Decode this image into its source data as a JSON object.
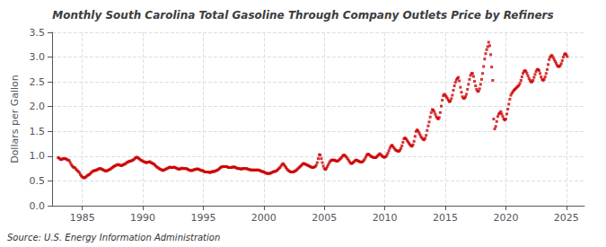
{
  "chart_data": {
    "type": "scatter",
    "title": "Monthly South Carolina Total Gasoline Through Company Outlets Price by Refiners",
    "ylabel": "Dollars per Gallon",
    "annotation": "Source: U.S. Energy Information Administration",
    "color": "#CC0000",
    "marker": "square",
    "grid": true,
    "xlim": [
      1982.5,
      2026.5
    ],
    "xticks": [
      1985,
      1990,
      1995,
      2000,
      2005,
      2010,
      2015,
      2020,
      2025
    ],
    "ylim": [
      0.0,
      3.5
    ],
    "yticks": [
      {
        "value": 0.0,
        "label": "0.0"
      },
      0.5,
      {
        "value": 1.0,
        "label": "1.0"
      },
      1.5,
      {
        "value": 2.0,
        "label": "2.0"
      },
      2.5,
      {
        "value": 3.0,
        "label": "3.0"
      },
      3.5
    ],
    "x": [
      1983,
      1983.0833333333,
      1983.1666666667,
      1983.25,
      1983.3333333333,
      1983.4166666667,
      1983.5,
      1983.5833333333,
      1983.6666666667,
      1983.75,
      1983.8333333333,
      1983.9166666667,
      1984,
      1984.0833333333,
      1984.1666666667,
      1984.25,
      1984.3333333333,
      1984.4166666667,
      1984.5,
      1984.5833333333,
      1984.6666666667,
      1984.75,
      1984.8333333333,
      1984.9166666667,
      1985,
      1985.0833333333,
      1985.1666666667,
      1985.25,
      1985.3333333333,
      1985.4166666667,
      1985.5,
      1985.5833333333,
      1985.6666666667,
      1985.75,
      1985.8333333333,
      1985.9166666667,
      1986,
      1986.0833333333,
      1986.1666666667,
      1986.25,
      1986.3333333333,
      1986.4166666667,
      1986.5,
      1986.5833333333,
      1986.6666666667,
      1986.75,
      1986.8333333333,
      1986.9166666667,
      1987,
      1987.0833333333,
      1987.1666666667,
      1987.25,
      1987.3333333333,
      1987.4166666667,
      1987.5,
      1987.5833333333,
      1987.6666666667,
      1987.75,
      1987.8333333333,
      1987.9166666667,
      1988,
      1988.0833333333,
      1988.1666666667,
      1988.25,
      1988.3333333333,
      1988.4166666667,
      1988.5,
      1988.5833333333,
      1988.6666666667,
      1988.75,
      1988.8333333333,
      1988.9166666667,
      1989,
      1989.0833333333,
      1989.1666666667,
      1989.25,
      1989.3333333333,
      1989.4166666667,
      1989.5,
      1989.5833333333,
      1989.6666666667,
      1989.75,
      1989.8333333333,
      1989.9166666667,
      1990,
      1990.0833333333,
      1990.1666666667,
      1990.25,
      1990.3333333333,
      1990.4166666667,
      1990.5,
      1990.5833333333,
      1990.6666666667,
      1990.75,
      1990.8333333333,
      1990.9166666667,
      1991,
      1991.0833333333,
      1991.1666666667,
      1991.25,
      1991.3333333333,
      1991.4166666667,
      1991.5,
      1991.5833333333,
      1991.6666666667,
      1991.75,
      1991.8333333333,
      1991.9166666667,
      1992,
      1992.0833333333,
      1992.1666666667,
      1992.25,
      1992.3333333333,
      1992.4166666667,
      1992.5,
      1992.5833333333,
      1992.6666666667,
      1992.75,
      1992.8333333333,
      1992.9166666667,
      1993,
      1993.0833333333,
      1993.1666666667,
      1993.25,
      1993.3333333333,
      1993.4166666667,
      1993.5,
      1993.5833333333,
      1993.6666666667,
      1993.75,
      1993.8333333333,
      1993.9166666667,
      1994,
      1994.0833333333,
      1994.1666666667,
      1994.25,
      1994.3333333333,
      1994.4166666667,
      1994.5,
      1994.5833333333,
      1994.6666666667,
      1994.75,
      1994.8333333333,
      1994.9166666667,
      1995,
      1995.0833333333,
      1995.1666666667,
      1995.25,
      1995.3333333333,
      1995.4166666667,
      1995.5,
      1995.5833333333,
      1995.6666666667,
      1995.75,
      1995.8333333333,
      1995.9166666667,
      1996,
      1996.0833333333,
      1996.1666666667,
      1996.25,
      1996.3333333333,
      1996.4166666667,
      1996.5,
      1996.5833333333,
      1996.6666666667,
      1996.75,
      1996.8333333333,
      1996.9166666667,
      1997,
      1997.0833333333,
      1997.1666666667,
      1997.25,
      1997.3333333333,
      1997.4166666667,
      1997.5,
      1997.5833333333,
      1997.6666666667,
      1997.75,
      1997.8333333333,
      1997.9166666667,
      1998,
      1998.0833333333,
      1998.1666666667,
      1998.25,
      1998.3333333333,
      1998.4166666667,
      1998.5,
      1998.5833333333,
      1998.6666666667,
      1998.75,
      1998.8333333333,
      1998.9166666667,
      1999,
      1999.0833333333,
      1999.1666666667,
      1999.25,
      1999.3333333333,
      1999.4166666667,
      1999.5,
      1999.5833333333,
      1999.6666666667,
      1999.75,
      1999.8333333333,
      1999.9166666667,
      2000,
      2000.0833333333,
      2000.1666666667,
      2000.25,
      2000.3333333333,
      2000.4166666667,
      2000.5,
      2000.5833333333,
      2000.6666666667,
      2000.75,
      2000.8333333333,
      2000.9166666667,
      2001,
      2001.0833333333,
      2001.1666666667,
      2001.25,
      2001.3333333333,
      2001.4166666667,
      2001.5,
      2001.5833333333,
      2001.6666666667,
      2001.75,
      2001.8333333333,
      2001.9166666667,
      2002,
      2002.0833333333,
      2002.1666666667,
      2002.25,
      2002.3333333333,
      2002.4166666667,
      2002.5,
      2002.5833333333,
      2002.6666666667,
      2002.75,
      2002.8333333333,
      2002.9166666667,
      2003,
      2003.0833333333,
      2003.1666666667,
      2003.25,
      2003.3333333333,
      2003.4166666667,
      2003.5,
      2003.5833333333,
      2003.6666666667,
      2003.75,
      2003.8333333333,
      2003.9166666667,
      2004,
      2004.0833333333,
      2004.1666666667,
      2004.25,
      2004.3333333333,
      2004.4166666667,
      2004.5,
      2004.5833333333,
      2004.6666666667,
      2004.75,
      2004.8333333333,
      2004.9166666667,
      2005,
      2005.0833333333,
      2005.1666666667,
      2005.25,
      2005.3333333333,
      2005.4166666667,
      2005.5,
      2005.5833333333,
      2005.6666666667,
      2005.75,
      2005.8333333333,
      2005.9166666667,
      2006,
      2006.0833333333,
      2006.1666666667,
      2006.25,
      2006.3333333333,
      2006.4166666667,
      2006.5,
      2006.5833333333,
      2006.6666666667,
      2006.75,
      2006.8333333333,
      2006.9166666667,
      2007,
      2007.0833333333,
      2007.1666666667,
      2007.25,
      2007.3333333333,
      2007.4166666667,
      2007.5,
      2007.5833333333,
      2007.6666666667,
      2007.75,
      2007.8333333333,
      2007.9166666667,
      2008,
      2008.0833333333,
      2008.1666666667,
      2008.25,
      2008.3333333333,
      2008.4166666667,
      2008.5,
      2008.5833333333,
      2008.6666666667,
      2008.75,
      2008.8333333333,
      2008.9166666667,
      2009,
      2009.0833333333,
      2009.1666666667,
      2009.25,
      2009.3333333333,
      2009.4166666667,
      2009.5,
      2009.5833333333,
      2009.6666666667,
      2009.75,
      2009.8333333333,
      2009.9166666667,
      2010,
      2010.0833333333,
      2010.1666666667,
      2010.25,
      2010.3333333333,
      2010.4166666667,
      2010.5,
      2010.5833333333,
      2010.6666666667,
      2010.75,
      2010.8333333333,
      2010.9166666667,
      2011,
      2011.0833333333,
      2011.1666666667,
      2011.25,
      2011.3333333333,
      2011.4166666667,
      2011.5,
      2011.5833333333,
      2011.6666666667,
      2011.75,
      2011.8333333333,
      2011.9166666667,
      2012,
      2012.0833333333,
      2012.1666666667,
      2012.25,
      2012.3333333333,
      2012.4166666667,
      2012.5,
      2012.5833333333,
      2012.6666666667,
      2012.75,
      2012.8333333333,
      2012.9166666667,
      2013,
      2013.0833333333,
      2013.1666666667,
      2013.25,
      2013.3333333333,
      2013.4166666667,
      2013.5,
      2013.5833333333,
      2013.6666666667,
      2013.75,
      2013.8333333333,
      2013.9166666667,
      2014,
      2014.0833333333,
      2014.1666666667,
      2014.25,
      2014.3333333333,
      2014.4166666667,
      2014.5,
      2014.5833333333,
      2014.6666666667,
      2014.75,
      2014.8333333333,
      2014.9166666667,
      2015,
      2015.0833333333,
      2015.1666666667,
      2015.25,
      2015.3333333333,
      2015.4166666667,
      2015.5,
      2015.5833333333,
      2015.6666666667,
      2015.75,
      2015.8333333333,
      2015.9166666667,
      2016,
      2016.0833333333,
      2016.1666666667,
      2016.25,
      2016.3333333333,
      2016.4166666667,
      2016.5,
      2016.5833333333,
      2016.6666666667,
      2016.75,
      2016.8333333333,
      2016.9166666667,
      2017,
      2017.0833333333,
      2017.1666666667,
      2017.25,
      2017.3333333333,
      2017.4166666667,
      2017.5,
      2017.5833333333,
      2017.6666666667,
      2017.75,
      2017.8333333333,
      2017.9166666667,
      2018,
      2018.0833333333,
      2018.1666666667,
      2018.25,
      2018.3333333333,
      2018.4166666667,
      2018.5,
      2018.5833333333,
      2018.6666666667,
      2018.75,
      2018.8333333333,
      2018.9166666667,
      2019,
      2019.0833333333,
      2019.1666666667,
      2019.25,
      2019.3333333333,
      2019.4166666667,
      2019.5,
      2019.5833333333,
      2019.6666666667,
      2019.75,
      2019.8333333333,
      2019.9166666667,
      2020,
      2020.0833333333,
      2020.1666666667,
      2020.25,
      2020.3333333333,
      2020.4166666667,
      2020.5,
      2020.5833333333,
      2020.6666666667,
      2020.75,
      2020.8333333333,
      2020.9166666667,
      2021,
      2021.0833333333,
      2021.1666666667,
      2021.25,
      2021.3333333333,
      2021.4166666667,
      2021.5,
      2021.5833333333,
      2021.6666666667,
      2021.75,
      2021.8333333333,
      2021.9166666667,
      2022,
      2022.0833333333,
      2022.1666666667,
      2022.25,
      2022.3333333333,
      2022.4166666667,
      2022.5,
      2022.5833333333,
      2022.6666666667,
      2022.75,
      2022.8333333333,
      2022.9166666667,
      2023,
      2023.0833333333,
      2023.1666666667,
      2023.25,
      2023.3333333333,
      2023.4166666667,
      2023.5,
      2023.5833333333,
      2023.6666666667,
      2023.75,
      2023.8333333333,
      2023.9166666667,
      2024,
      2024.0833333333,
      2024.1666666667,
      2024.25,
      2024.3333333333,
      2024.4166666667,
      2024.5,
      2024.5833333333,
      2024.6666666667,
      2024.75,
      2024.8333333333,
      2024.9166666667,
      2025,
      2025.0833333333
    ],
    "values": [
      0.97,
      0.96,
      0.94,
      0.93,
      0.94,
      0.95,
      0.95,
      0.95,
      0.94,
      0.93,
      0.92,
      0.91,
      0.87,
      0.83,
      0.8,
      0.78,
      0.77,
      0.76,
      0.73,
      0.71,
      0.69,
      0.67,
      0.63,
      0.6,
      0.58,
      0.57,
      0.56,
      0.57,
      0.59,
      0.61,
      0.62,
      0.63,
      0.65,
      0.67,
      0.69,
      0.7,
      0.71,
      0.71,
      0.72,
      0.73,
      0.74,
      0.75,
      0.75,
      0.74,
      0.73,
      0.72,
      0.71,
      0.7,
      0.7,
      0.71,
      0.72,
      0.73,
      0.74,
      0.76,
      0.77,
      0.79,
      0.8,
      0.81,
      0.82,
      0.83,
      0.83,
      0.82,
      0.81,
      0.81,
      0.82,
      0.83,
      0.84,
      0.85,
      0.87,
      0.88,
      0.89,
      0.9,
      0.9,
      0.91,
      0.92,
      0.93,
      0.95,
      0.97,
      0.98,
      0.97,
      0.95,
      0.94,
      0.92,
      0.91,
      0.9,
      0.89,
      0.88,
      0.87,
      0.87,
      0.88,
      0.88,
      0.89,
      0.87,
      0.86,
      0.85,
      0.84,
      0.82,
      0.8,
      0.78,
      0.77,
      0.75,
      0.74,
      0.73,
      0.72,
      0.71,
      0.72,
      0.73,
      0.74,
      0.75,
      0.76,
      0.77,
      0.78,
      0.77,
      0.77,
      0.77,
      0.78,
      0.77,
      0.76,
      0.75,
      0.74,
      0.74,
      0.74,
      0.75,
      0.76,
      0.75,
      0.75,
      0.75,
      0.75,
      0.74,
      0.73,
      0.72,
      0.71,
      0.71,
      0.71,
      0.72,
      0.73,
      0.73,
      0.74,
      0.74,
      0.74,
      0.73,
      0.72,
      0.71,
      0.71,
      0.7,
      0.69,
      0.68,
      0.68,
      0.68,
      0.68,
      0.67,
      0.67,
      0.68,
      0.69,
      0.69,
      0.69,
      0.7,
      0.71,
      0.72,
      0.73,
      0.75,
      0.77,
      0.78,
      0.79,
      0.79,
      0.79,
      0.79,
      0.79,
      0.78,
      0.77,
      0.77,
      0.77,
      0.77,
      0.78,
      0.78,
      0.78,
      0.77,
      0.76,
      0.75,
      0.75,
      0.75,
      0.74,
      0.74,
      0.75,
      0.75,
      0.75,
      0.75,
      0.75,
      0.74,
      0.73,
      0.73,
      0.72,
      0.72,
      0.72,
      0.72,
      0.72,
      0.72,
      0.72,
      0.72,
      0.72,
      0.71,
      0.7,
      0.69,
      0.69,
      0.68,
      0.67,
      0.66,
      0.65,
      0.65,
      0.65,
      0.65,
      0.66,
      0.67,
      0.68,
      0.69,
      0.69,
      0.7,
      0.71,
      0.73,
      0.75,
      0.77,
      0.8,
      0.83,
      0.85,
      0.83,
      0.8,
      0.77,
      0.74,
      0.72,
      0.7,
      0.69,
      0.68,
      0.68,
      0.68,
      0.69,
      0.7,
      0.71,
      0.73,
      0.75,
      0.77,
      0.79,
      0.81,
      0.83,
      0.85,
      0.85,
      0.84,
      0.83,
      0.82,
      0.81,
      0.8,
      0.79,
      0.78,
      0.77,
      0.77,
      0.78,
      0.79,
      0.82,
      0.87,
      0.95,
      1.03,
      1.02,
      0.95,
      0.87,
      0.8,
      0.75,
      0.73,
      0.75,
      0.79,
      0.83,
      0.87,
      0.9,
      0.92,
      0.92,
      0.92,
      0.92,
      0.91,
      0.9,
      0.9,
      0.91,
      0.93,
      0.95,
      0.97,
      1.0,
      1.02,
      1.02,
      1.0,
      0.98,
      0.95,
      0.92,
      0.89,
      0.86,
      0.85,
      0.86,
      0.88,
      0.9,
      0.92,
      0.92,
      0.91,
      0.9,
      0.89,
      0.88,
      0.88,
      0.89,
      0.91,
      0.94,
      0.98,
      1.02,
      1.04,
      1.04,
      1.02,
      1.0,
      0.99,
      0.98,
      0.97,
      0.97,
      0.97,
      0.99,
      1.01,
      1.03,
      1.05,
      1.03,
      1.01,
      0.99,
      0.98,
      0.98,
      0.99,
      1.02,
      1.06,
      1.11,
      1.16,
      1.2,
      1.22,
      1.2,
      1.17,
      1.14,
      1.12,
      1.11,
      1.1,
      1.1,
      1.12,
      1.16,
      1.21,
      1.28,
      1.35,
      1.37,
      1.35,
      1.32,
      1.29,
      1.26,
      1.23,
      1.21,
      1.2,
      1.23,
      1.3,
      1.4,
      1.5,
      1.53,
      1.51,
      1.47,
      1.43,
      1.39,
      1.36,
      1.34,
      1.33,
      1.36,
      1.42,
      1.52,
      1.61,
      1.69,
      1.79,
      1.88,
      1.94,
      1.93,
      1.9,
      1.85,
      1.8,
      1.77,
      1.75,
      1.78,
      1.88,
      2.01,
      2.13,
      2.22,
      2.25,
      2.23,
      2.2,
      2.17,
      2.13,
      2.1,
      2.11,
      2.16,
      2.23,
      2.33,
      2.42,
      2.49,
      2.54,
      2.57,
      2.59,
      2.52,
      2.39,
      2.29,
      2.2,
      2.17,
      2.17,
      2.2,
      2.25,
      2.35,
      2.45,
      2.55,
      2.63,
      2.67,
      2.67,
      2.61,
      2.51,
      2.42,
      2.35,
      2.31,
      2.31,
      2.36,
      2.45,
      2.55,
      2.67,
      2.81,
      2.96,
      3.07,
      3.15,
      3.21,
      3.3,
      3.23,
      3.05,
      2.8,
      2.53,
      1.75,
      1.55,
      1.6,
      1.7,
      1.8,
      1.85,
      1.87,
      1.9,
      1.85,
      1.8,
      1.75,
      1.73,
      1.75,
      1.85,
      1.95,
      2.05,
      2.15,
      2.23,
      2.27,
      2.3,
      2.33,
      2.35,
      2.37,
      2.39,
      2.41,
      2.43,
      2.47,
      2.53,
      2.6,
      2.67,
      2.71,
      2.73,
      2.71,
      2.67,
      2.62,
      2.57,
      2.53,
      2.5,
      2.5,
      2.53,
      2.59,
      2.65,
      2.71,
      2.75,
      2.75,
      2.73,
      2.67,
      2.6,
      2.55,
      2.53,
      2.55,
      2.6,
      2.67,
      2.75,
      2.85,
      2.95,
      3.0,
      3.03,
      3.03,
      2.99,
      2.95,
      2.91,
      2.87,
      2.83,
      2.81,
      2.81,
      2.83,
      2.87,
      2.93,
      3.0,
      3.05,
      3.07,
      3.05,
      3.01
    ]
  }
}
